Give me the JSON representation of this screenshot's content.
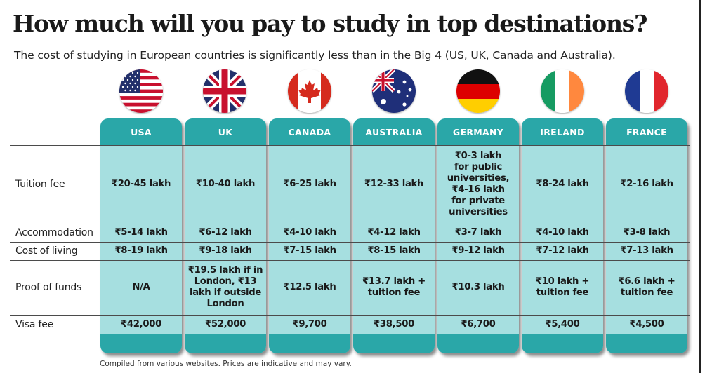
{
  "title": "How much will you pay to study in top destinations?",
  "subtitle": "The cost of studying in European countries is significantly less than in the Big 4 (US, UK, Canada and Australia).",
  "countries": [
    {
      "name": "USA",
      "flag_icon": "usa-flag-icon"
    },
    {
      "name": "UK",
      "flag_icon": "uk-flag-icon"
    },
    {
      "name": "CANADA",
      "flag_icon": "canada-flag-icon"
    },
    {
      "name": "AUSTRALIA",
      "flag_icon": "australia-flag-icon"
    },
    {
      "name": "GERMANY",
      "flag_icon": "germany-flag-icon"
    },
    {
      "name": "IRELAND",
      "flag_icon": "ireland-flag-icon"
    },
    {
      "name": "FRANCE",
      "flag_icon": "france-flag-icon"
    }
  ],
  "rows": [
    {
      "label": "Tuition fee",
      "values": [
        "₹20-45 lakh",
        "₹10-40 lakh",
        "₹6-25 lakh",
        "₹12-33 lakh",
        "₹0-3 lakh\nfor public\nuniversities,\n₹4-16 lakh\nfor private\nuniversities",
        "₹8-24 lakh",
        "₹2-16 lakh"
      ]
    },
    {
      "label": "Accommodation",
      "values": [
        "₹5-14 lakh",
        "₹6-12 lakh",
        "₹4-10 lakh",
        "₹4-12 lakh",
        "₹3-7 lakh",
        "₹4-10 lakh",
        "₹3-8 lakh"
      ]
    },
    {
      "label": "Cost of living",
      "values": [
        "₹8-19 lakh",
        "₹9-18 lakh",
        "₹7-15 lakh",
        "₹8-15 lakh",
        "₹9-12 lakh",
        "₹7-12 lakh",
        "₹7-13 lakh"
      ]
    },
    {
      "label": "Proof of funds",
      "values": [
        "N/A",
        "₹19.5 lakh if in\nLondon, ₹13\nlakh if outside\nLondon",
        "₹12.5 lakh",
        "₹13.7 lakh +\ntuition fee",
        "₹10.3 lakh",
        "₹10 lakh +\ntuition fee",
        "₹6.6 lakh +\ntuition fee"
      ]
    },
    {
      "label": "Visa fee",
      "values": [
        "₹42,000",
        "₹52,000",
        "₹9,700",
        "₹38,500",
        "₹6,700",
        "₹5,400",
        "₹4,500"
      ]
    }
  ],
  "footer": "Compiled from various websites. Prices are indicative and may vary.",
  "colors": {
    "column_header": "#2aa7a8",
    "column_body": "#a6dfe0"
  }
}
